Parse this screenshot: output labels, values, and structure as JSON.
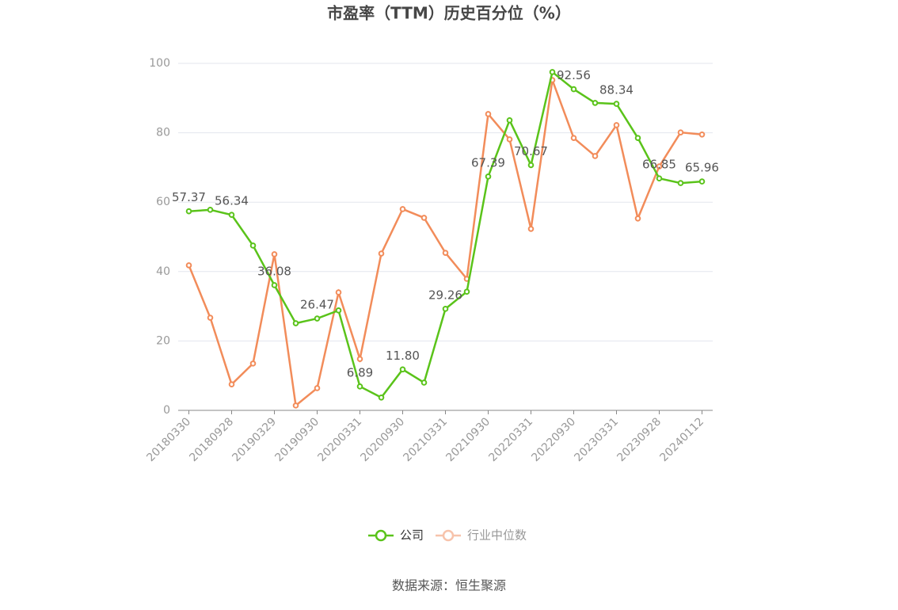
{
  "chart_data": {
    "type": "line",
    "title": "市盈率（TTM）历史百分位（%）",
    "source": "数据来源：恒生聚源",
    "categories": [
      "20180330",
      null,
      "20180928",
      null,
      "20190329",
      null,
      "20190930",
      null,
      "20200331",
      null,
      "20200930",
      null,
      "20210331",
      null,
      "20210930",
      null,
      "20220331",
      null,
      "20220930",
      null,
      "20230331",
      null,
      "20230928",
      null,
      "20240112"
    ],
    "series": [
      {
        "name": "公司",
        "color": "#5ac31a",
        "values": [
          57.37,
          57.8,
          56.34,
          47.5,
          36.08,
          25.1,
          26.47,
          28.8,
          6.89,
          3.7,
          11.8,
          8.0,
          29.26,
          34.2,
          67.39,
          83.6,
          70.67,
          97.5,
          92.56,
          88.6,
          88.34,
          78.5,
          66.85,
          65.5,
          65.96
        ],
        "value_labels": [
          "57.37",
          null,
          "56.34",
          null,
          "36.08",
          null,
          "26.47",
          null,
          "6.89",
          null,
          "11.80",
          null,
          "29.26",
          null,
          "67.39",
          null,
          "70.67",
          null,
          "92.56",
          null,
          "88.34",
          null,
          "66.85",
          null,
          "65.96"
        ]
      },
      {
        "name": "行业中位数",
        "color": "#f28c5a",
        "values": [
          41.8,
          26.7,
          7.5,
          13.5,
          45.0,
          1.4,
          6.4,
          34.0,
          14.8,
          45.2,
          58.0,
          55.5,
          45.4,
          37.9,
          85.4,
          78.1,
          52.3,
          95.2,
          78.5,
          73.3,
          82.2,
          55.3,
          70.3,
          80.1,
          79.5
        ]
      }
    ],
    "ylim": [
      0,
      100
    ],
    "yticks": [
      0,
      20,
      40,
      60,
      80,
      100
    ],
    "grid": true,
    "legend": "bottom"
  }
}
